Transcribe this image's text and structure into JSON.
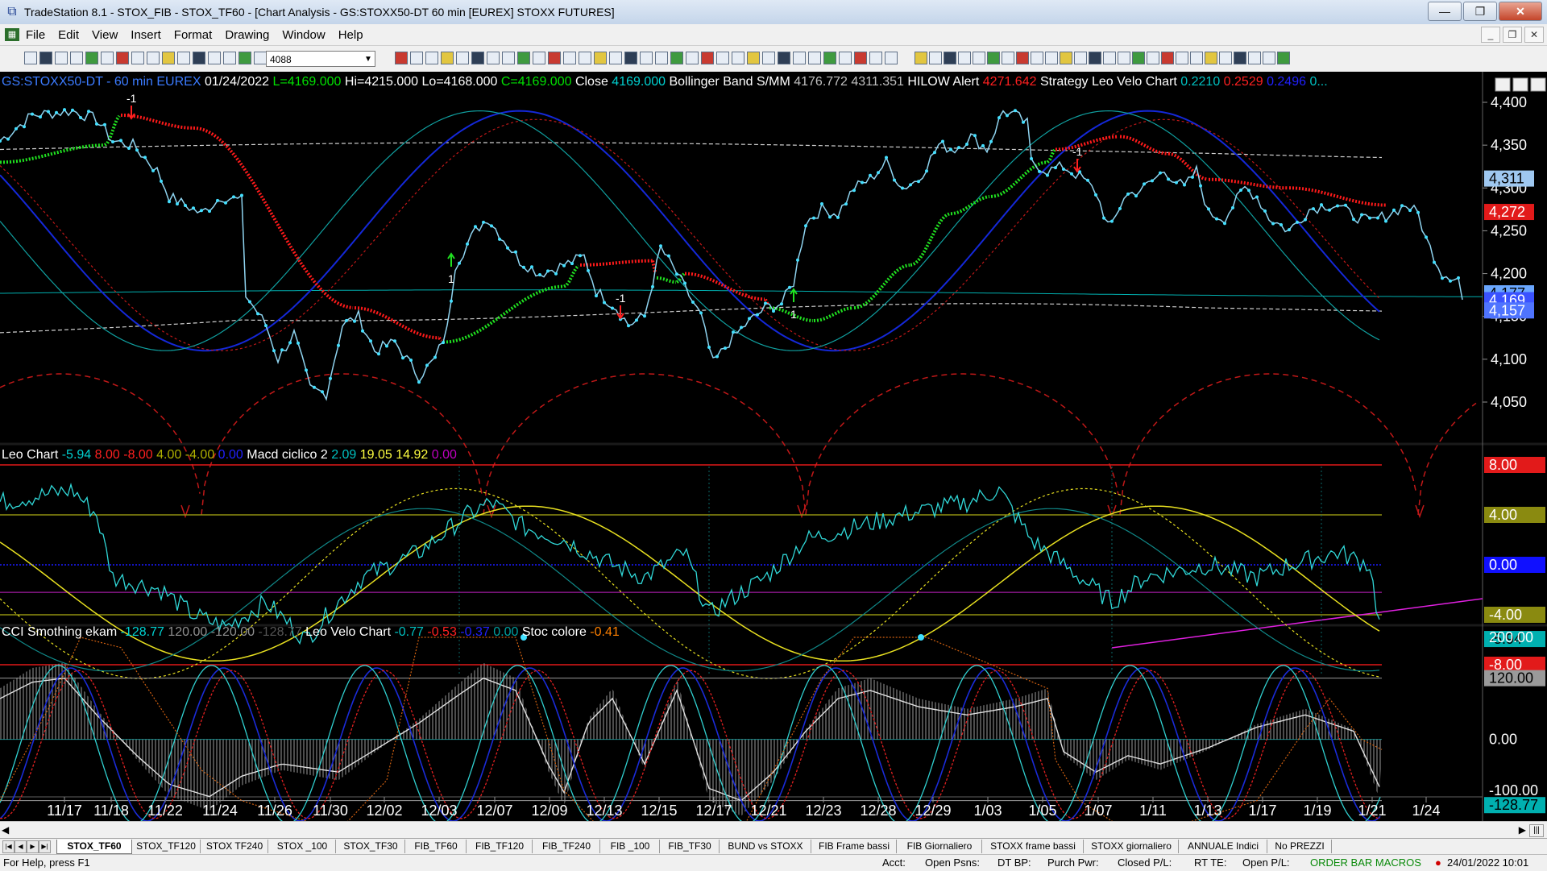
{
  "window": {
    "title": "TradeStation 8.1 - STOX_FIB - STOX_TF60 - [Chart Analysis - GS:STOXX50-DT  60 min  [EUREX] STOXX FUTURES]"
  },
  "menu": [
    "File",
    "Edit",
    "View",
    "Insert",
    "Format",
    "Drawing",
    "Window",
    "Help"
  ],
  "toolbar": {
    "interval_value": "4088"
  },
  "price_header": [
    {
      "text": "GS:STOXX50-DT - 60 min",
      "color": "#3b7bff"
    },
    {
      "text": "EUREX",
      "color": "#3b7bff"
    },
    {
      "text": "01/24/2022",
      "color": "#ffffff"
    },
    {
      "text": "L=4169.000",
      "color": "#00e000"
    },
    {
      "text": "Hi=4215.000",
      "color": "#ffffff"
    },
    {
      "text": "Lo=4168.000",
      "color": "#ffffff"
    },
    {
      "text": "C=4169.000",
      "color": "#00e000"
    },
    {
      "text": "Close",
      "color": "#ffffff"
    },
    {
      "text": "4169.000",
      "color": "#00d0d0"
    },
    {
      "text": "Bollinger Band S/MM",
      "color": "#ffffff"
    },
    {
      "text": "4176.772",
      "color": "#c0c0c0"
    },
    {
      "text": "4311.351",
      "color": "#c0c0c0"
    },
    {
      "text": "HILOW Alert",
      "color": "#ffffff"
    },
    {
      "text": "4271.642",
      "color": "#ff2020"
    },
    {
      "text": "Strategy",
      "color": "#ffffff"
    },
    {
      "text": "Leo Velo Chart",
      "color": "#ffffff"
    },
    {
      "text": "0.2210",
      "color": "#00c0c0"
    },
    {
      "text": "0.2529",
      "color": "#ff2020"
    },
    {
      "text": "0.2496",
      "color": "#2020ff"
    },
    {
      "text": "0...",
      "color": "#00c0c0"
    }
  ],
  "leo_header": [
    {
      "text": "Leo Chart",
      "color": "#ffffff"
    },
    {
      "text": "-5.94",
      "color": "#00d0d0"
    },
    {
      "text": "8.00",
      "color": "#ff2020"
    },
    {
      "text": "-8.00",
      "color": "#ff2020"
    },
    {
      "text": "4.00",
      "color": "#b0b000"
    },
    {
      "text": "-4.00",
      "color": "#b0b000"
    },
    {
      "text": "0.00",
      "color": "#2020ff"
    },
    {
      "text": "Macd ciclico 2",
      "color": "#ffffff"
    },
    {
      "text": "2.09",
      "color": "#00c0c0"
    },
    {
      "text": "19.05",
      "color": "#ffff40"
    },
    {
      "text": "14.92",
      "color": "#ffff40"
    },
    {
      "text": "0.00",
      "color": "#c000c0"
    }
  ],
  "cci_header": [
    {
      "text": "CCI Smothing ekam",
      "color": "#ffffff"
    },
    {
      "text": "-128.77",
      "color": "#00d0d0"
    },
    {
      "text": "120.00",
      "color": "#909090"
    },
    {
      "text": "-120.00",
      "color": "#909090"
    },
    {
      "text": "-128.77",
      "color": "#555555"
    },
    {
      "text": "Leo Velo Chart",
      "color": "#ffffff"
    },
    {
      "text": "-0.77",
      "color": "#00c0c0"
    },
    {
      "text": "-0.53",
      "color": "#ff2020"
    },
    {
      "text": "-0.37",
      "color": "#2020ff"
    },
    {
      "text": "0.00",
      "color": "#00a0a0"
    },
    {
      "text": "Stoc colore",
      "color": "#ffffff"
    },
    {
      "text": "-0.41",
      "color": "#ff8000"
    }
  ],
  "price_axis": [
    "4,400",
    "4,350",
    "4,300",
    "4,250",
    "4,200",
    "4,150",
    "4,100",
    "4,050"
  ],
  "price_tags": [
    {
      "text": "4,311",
      "bg": "#9fc8f0",
      "fg": "#000"
    },
    {
      "text": "4,272",
      "bg": "#e21a1a",
      "fg": "#fff"
    },
    {
      "text": "4,177",
      "bg": "#6aa7ff",
      "fg": "#000"
    },
    {
      "text": "4,169",
      "bg": "#3a52ff",
      "fg": "#fff"
    },
    {
      "text": "4,157",
      "bg": "#4f74ff",
      "fg": "#fff"
    }
  ],
  "leo_tags": [
    {
      "text": "8.00",
      "bg": "#e21a1a",
      "fg": "#fff"
    },
    {
      "text": "4.00",
      "bg": "#8a8a10",
      "fg": "#fff"
    },
    {
      "text": "0.00",
      "bg": "#1010ff",
      "fg": "#fff"
    },
    {
      "text": "-4.00",
      "bg": "#8a8a10",
      "fg": "#fff"
    },
    {
      "text": "-5.94",
      "bg": "#00b0b0",
      "fg": "#000"
    },
    {
      "text": "-8.00",
      "bg": "#e21a1a",
      "fg": "#fff"
    }
  ],
  "cci_axis": [
    "200.00",
    "120.00",
    "0.00",
    "-100.00",
    "-128.77"
  ],
  "strategy_marks": [
    "-1",
    "1",
    "-1",
    "1",
    "-1"
  ],
  "date_axis": [
    "11/17",
    "11/18",
    "11/22",
    "11/24",
    "11/26",
    "11/30",
    "12/02",
    "12/03",
    "12/07",
    "12/09",
    "12/13",
    "12/15",
    "12/17",
    "12/21",
    "12/23",
    "12/28",
    "12/29",
    "1/03",
    "1/05",
    "1/07",
    "1/11",
    "1/13",
    "1/17",
    "1/19",
    "1/21",
    "1/24"
  ],
  "tabs": [
    "STOX_TF60",
    "STOX_TF120",
    "STOX TF240",
    "STOX _100",
    "STOX_TF30",
    "FIB_TF60",
    "FIB_TF120",
    "FIB_TF240",
    "FIB _100",
    "FIB_TF30",
    "BUND vs STOXX",
    "FIB Frame bassi",
    "FIB Giornaliero",
    "STOXX frame bassi",
    "STOXX giornaliero",
    "ANNUALE Indici",
    "No PREZZI"
  ],
  "status": {
    "help": "For Help, press F1",
    "acct": "Acct:",
    "open_psns": "Open Psns:",
    "dt_bp": "DT BP:",
    "purch_pwr": "Purch Pwr:",
    "closed_pl": "Closed P/L:",
    "rt_te": "RT TE:",
    "open_pl": "Open P/L:",
    "macros": "ORDER BAR  MACROS",
    "datetime": "24/01/2022 10:01"
  }
}
